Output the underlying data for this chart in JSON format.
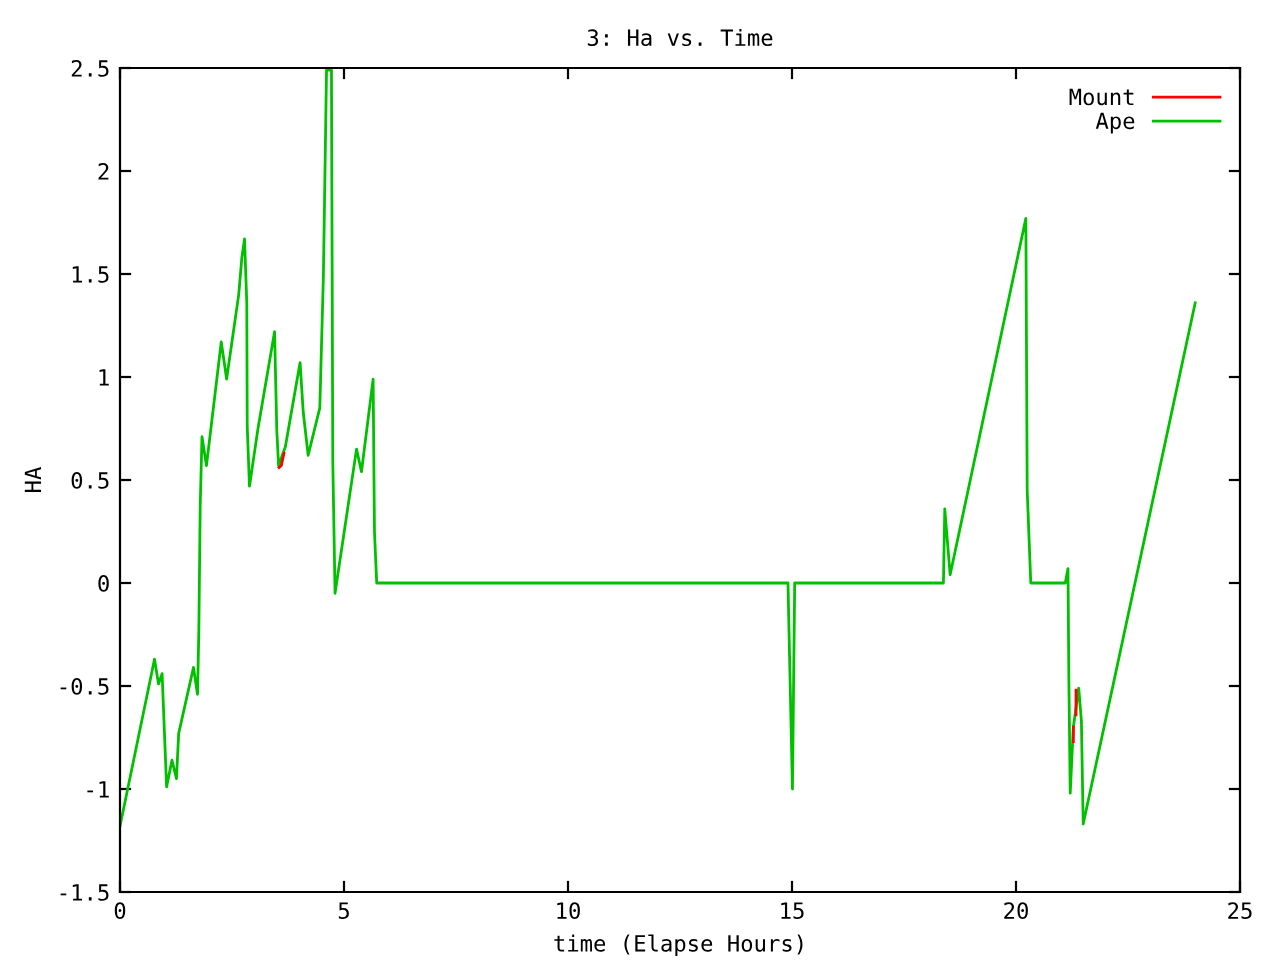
{
  "chart_data": {
    "type": "line",
    "title": "3: Ha vs. Time",
    "xlabel": "time (Elapse Hours)",
    "ylabel": "HA",
    "xlim": [
      0,
      25
    ],
    "xticks": [
      0,
      5,
      10,
      15,
      20,
      25
    ],
    "ylim": [
      -1.5,
      2.5
    ],
    "yticks": [
      -1.5,
      -1,
      -0.5,
      0,
      0.5,
      1,
      1.5,
      2,
      2.5
    ],
    "grid": false,
    "legend": "top right",
    "line_style": "solid",
    "marker": "none",
    "series": [
      {
        "name": "Mount",
        "color": "#ff0000",
        "x": [
          3.55,
          3.6,
          3.66,
          3.7,
          21.28,
          21.28,
          21.3,
          21.34,
          21.34
        ],
        "values": [
          0.56,
          0.57,
          0.63,
          null,
          -0.77,
          -0.7,
          null,
          -0.64,
          -0.52
        ]
      },
      {
        "name": "Ape",
        "color": "#00c000",
        "x": [
          0,
          0.77,
          0.86,
          0.94,
          1.04,
          1.16,
          1.26,
          1.31,
          1.64,
          1.73,
          1.76,
          1.79,
          1.83,
          1.93,
          2.26,
          2.38,
          2.65,
          2.72,
          2.78,
          2.83,
          2.84,
          2.89,
          3.08,
          3.45,
          3.5,
          3.54,
          3.69,
          4.02,
          4.09,
          4.2,
          4.46,
          4.54,
          4.61,
          4.72,
          4.75,
          4.8,
          5.28,
          5.39,
          5.65,
          5.68,
          5.73,
          14.91,
          15.01,
          15.06,
          18.38,
          18.41,
          18.53,
          20.22,
          20.25,
          20.33,
          21.1,
          21.16,
          21.18,
          21.21,
          21.28,
          21.4,
          21.46,
          21.5,
          24
        ],
        "values": [
          -1.18,
          -0.37,
          -0.49,
          -0.44,
          -0.99,
          -0.86,
          -0.95,
          -0.73,
          -0.41,
          -0.54,
          -0.23,
          0.37,
          0.71,
          0.57,
          1.17,
          0.99,
          1.4,
          1.58,
          1.67,
          1.36,
          0.76,
          0.47,
          0.75,
          1.22,
          0.74,
          0.57,
          0.66,
          1.07,
          0.83,
          0.62,
          0.85,
          1.49,
          2.49,
          2.49,
          0.59,
          -0.05,
          0.65,
          0.54,
          0.99,
          0.25,
          0,
          0,
          -1,
          0,
          0,
          0.36,
          0.04,
          1.77,
          0.45,
          0,
          0,
          0.07,
          -0.47,
          -1.02,
          -0.7,
          -0.51,
          -0.67,
          -1.17,
          1.36
        ]
      }
    ]
  }
}
